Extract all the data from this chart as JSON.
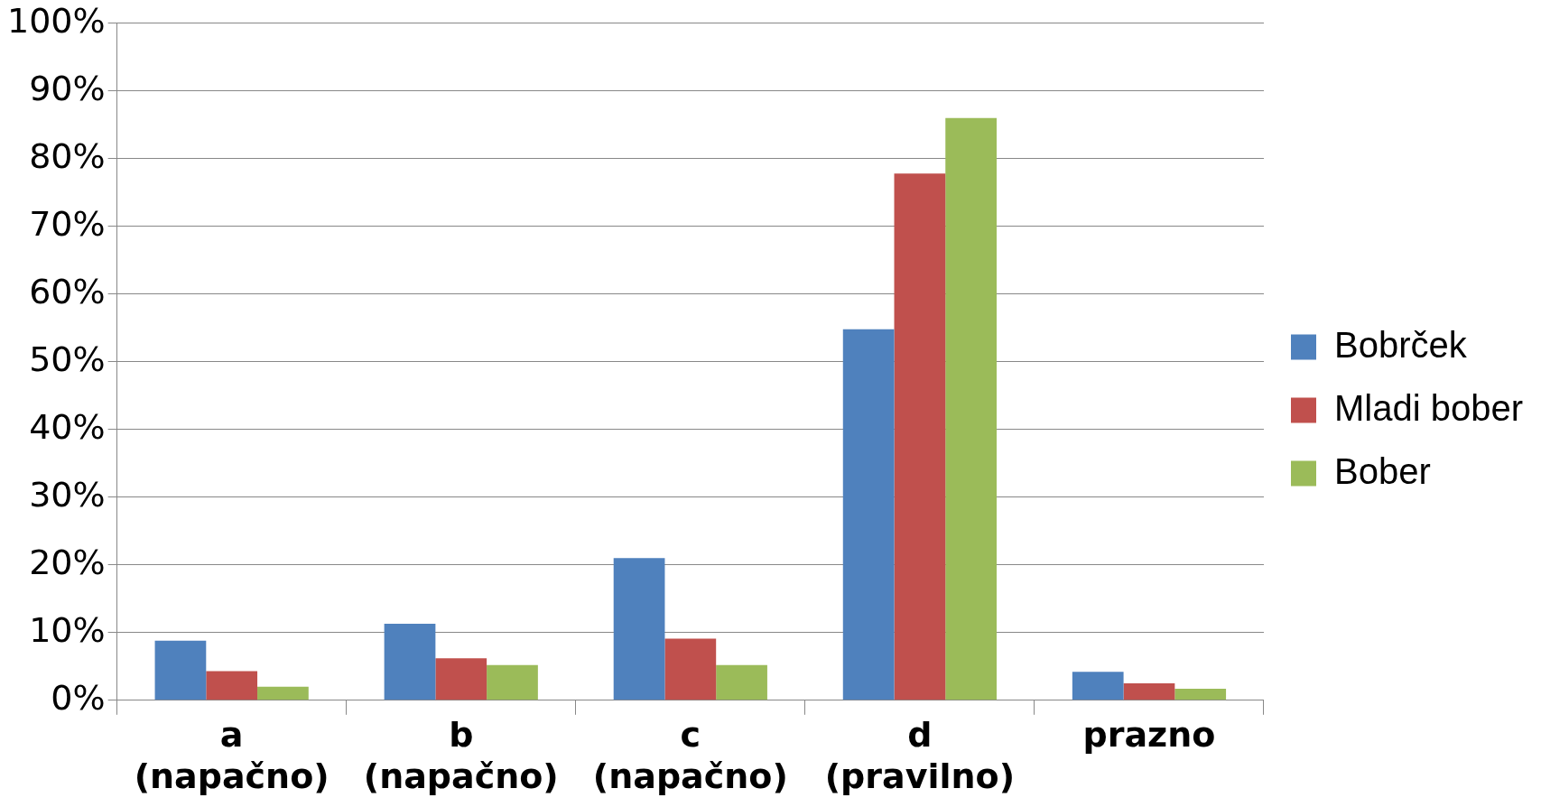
{
  "chart_data": {
    "type": "bar",
    "categories": [
      "a (napačno)",
      "b (napačno)",
      "c (napačno)",
      "d (pravilno)",
      "prazno"
    ],
    "series": [
      {
        "name": "Bobrček",
        "color": "#4f81bd",
        "values": [
          8.8,
          11.3,
          21.0,
          54.8,
          4.2
        ]
      },
      {
        "name": "Mladi bober",
        "color": "#c0504d",
        "values": [
          4.3,
          6.2,
          9.1,
          77.8,
          2.5
        ]
      },
      {
        "name": "Bober",
        "color": "#9bbb59",
        "values": [
          2.0,
          5.2,
          5.2,
          86.0,
          1.7
        ]
      }
    ],
    "ylim": [
      0,
      100
    ],
    "yticks": [
      {
        "value": 0,
        "label": "0%"
      },
      {
        "value": 10,
        "label": "10%"
      },
      {
        "value": 20,
        "label": "20%"
      },
      {
        "value": 30,
        "label": "30%"
      },
      {
        "value": 40,
        "label": "40%"
      },
      {
        "value": 50,
        "label": "50%"
      },
      {
        "value": 60,
        "label": "60%"
      },
      {
        "value": 70,
        "label": "70%"
      },
      {
        "value": 80,
        "label": "80%"
      },
      {
        "value": 90,
        "label": "90%"
      },
      {
        "value": 100,
        "label": "100%"
      }
    ],
    "grid": "y",
    "legend": "right"
  }
}
